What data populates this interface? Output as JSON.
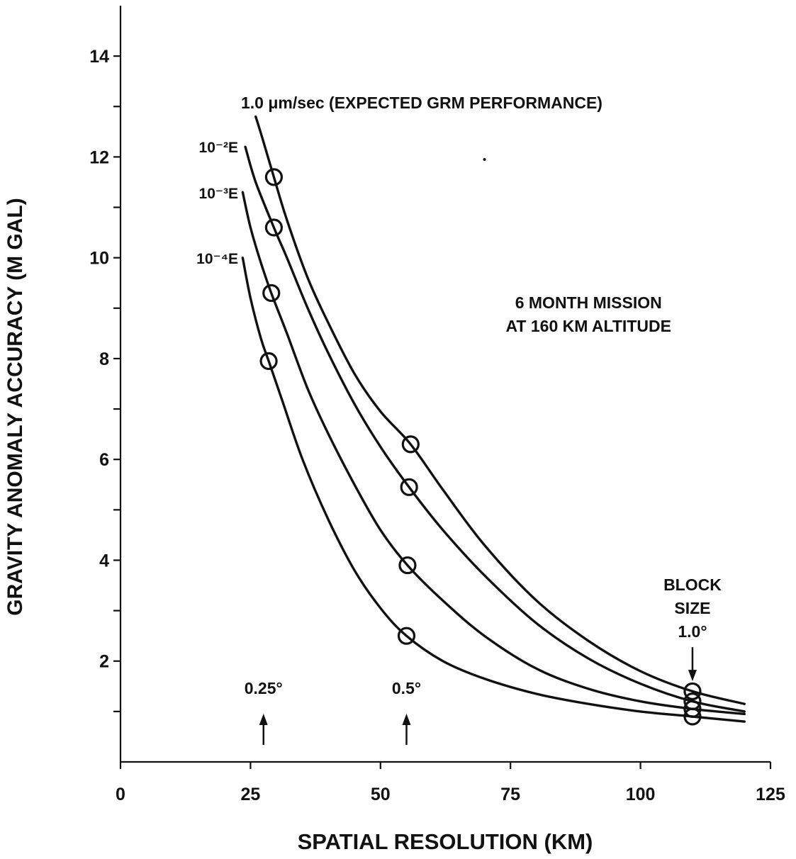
{
  "chart_data": {
    "type": "line",
    "xlabel": "SPATIAL RESOLUTION (KM)",
    "ylabel": "GRAVITY ANOMALY ACCURACY (M GAL)",
    "xlim": [
      0,
      125
    ],
    "ylim": [
      0,
      15
    ],
    "x_ticks": [
      0,
      25,
      50,
      75,
      100,
      125
    ],
    "x_tick_labels": [
      "0",
      "25",
      "50",
      "75",
      "100",
      "125"
    ],
    "y_ticks": [
      2,
      4,
      6,
      8,
      10,
      12,
      14
    ],
    "y_tick_labels": [
      "2",
      "4",
      "6",
      "8",
      "10",
      "12",
      "14"
    ],
    "y_minor_ticks": [
      1,
      3,
      5,
      7,
      9,
      11,
      13
    ],
    "grid": false,
    "line_color": "#111111",
    "series": [
      {
        "name": "1.0 μm/sec (EXPECTED GRM PERFORMANCE)",
        "x": [
          26,
          27.5,
          29.5,
          32,
          36,
          40,
          45,
          50,
          55.8,
          62,
          70,
          80,
          90,
          100,
          110,
          120
        ],
        "y": [
          12.8,
          12.3,
          11.6,
          10.75,
          9.6,
          8.7,
          7.7,
          6.95,
          6.3,
          5.4,
          4.3,
          3.2,
          2.4,
          1.8,
          1.4,
          1.15
        ],
        "markers_x": [
          29.5,
          55.8,
          110
        ],
        "markers_y": [
          11.6,
          6.3,
          1.4
        ]
      },
      {
        "name": "10⁻²E",
        "x": [
          24,
          26,
          29.5,
          32,
          36,
          40,
          45,
          50,
          55.5,
          62,
          70,
          80,
          90,
          100,
          110,
          120
        ],
        "y": [
          12.2,
          11.5,
          10.6,
          10.0,
          9.0,
          8.1,
          7.1,
          6.25,
          5.45,
          4.6,
          3.7,
          2.75,
          2.05,
          1.55,
          1.2,
          1.0
        ],
        "markers_x": [
          29.5,
          55.5,
          110
        ],
        "markers_y": [
          10.6,
          5.45,
          1.2
        ]
      },
      {
        "name": "10⁻³E",
        "x": [
          23.5,
          25,
          27,
          29,
          32,
          36,
          40,
          45,
          50,
          55.2,
          62,
          70,
          80,
          90,
          100,
          110,
          120
        ],
        "y": [
          11.3,
          10.6,
          9.9,
          9.3,
          8.5,
          7.4,
          6.5,
          5.5,
          4.6,
          3.9,
          3.2,
          2.5,
          1.85,
          1.45,
          1.2,
          1.05,
          0.95
        ],
        "markers_x": [
          29,
          55.2,
          110
        ],
        "markers_y": [
          9.3,
          3.9,
          1.05
        ]
      },
      {
        "name": "10⁻⁴E",
        "x": [
          23.5,
          25,
          27,
          28.5,
          31,
          35,
          40,
          45,
          50,
          55,
          62,
          70,
          80,
          90,
          100,
          110,
          120
        ],
        "y": [
          10.0,
          9.2,
          8.4,
          7.95,
          7.2,
          6.0,
          4.8,
          3.8,
          3.05,
          2.5,
          2.0,
          1.65,
          1.35,
          1.15,
          1.0,
          0.9,
          0.8
        ],
        "markers_x": [
          28.5,
          55,
          110
        ],
        "markers_y": [
          7.95,
          2.5,
          0.9
        ]
      }
    ],
    "annotations": [
      {
        "lines": [
          "6 MONTH MISSION",
          "AT 160 KM ALTITUDE"
        ],
        "x": 90,
        "y": 9.0
      },
      {
        "lines": [
          "BLOCK",
          "SIZE",
          "1.0°"
        ],
        "x": 110,
        "y": 3.4,
        "arrow": true
      },
      {
        "lines": [
          "0.25°"
        ],
        "x": 27.5,
        "y": 1.35,
        "arrow": true
      },
      {
        "lines": [
          "0.5°"
        ],
        "x": 55,
        "y": 1.35,
        "arrow": true
      }
    ],
    "stray_marks": [
      {
        "x": 70,
        "y": 11.95
      }
    ]
  }
}
